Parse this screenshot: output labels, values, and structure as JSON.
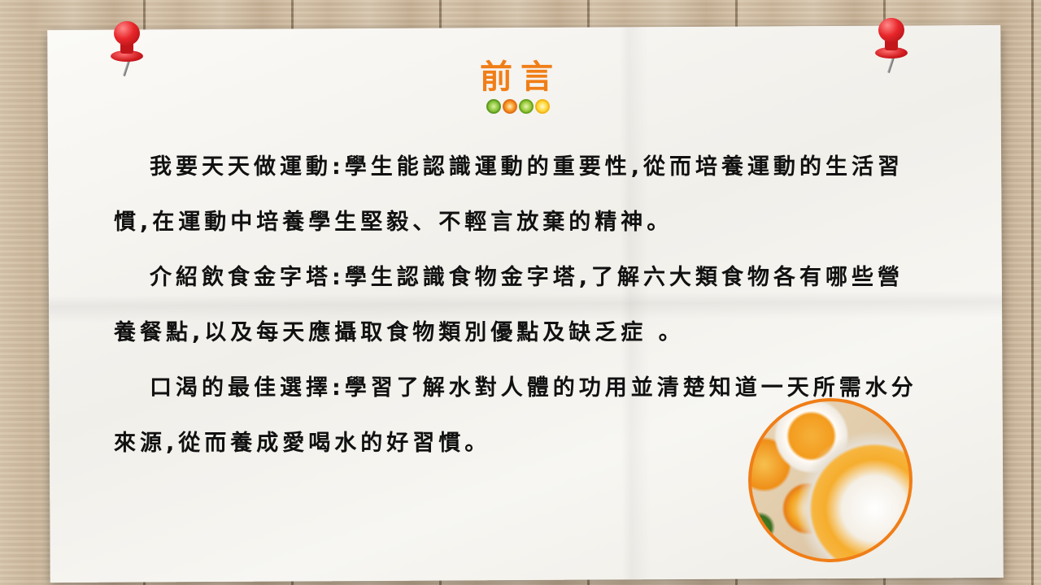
{
  "title": "前言",
  "decor": {
    "fruit_icons": [
      "lime-slice-icon",
      "orange-slice-icon",
      "lime-slice-icon",
      "lemon-slice-icon"
    ],
    "pin_color": "#e8262a",
    "title_color": "#f07e17"
  },
  "paragraphs": [
    "我要天天做運動:學生能認識運動的重要性,從而培養運動的生活習慣,在運動中培養學生堅毅、不輕言放棄的精神。",
    "介紹飲食金字塔:學生認識食物金字塔,了解六大類食物各有哪些營養餐點,以及每天應攝取食物類別優點及缺乏症 。",
    "口渴的最佳選擇:學習了解水對人體的功用並清楚知道一天所需水分來源,從而養成愛喝水的好習慣。"
  ]
}
